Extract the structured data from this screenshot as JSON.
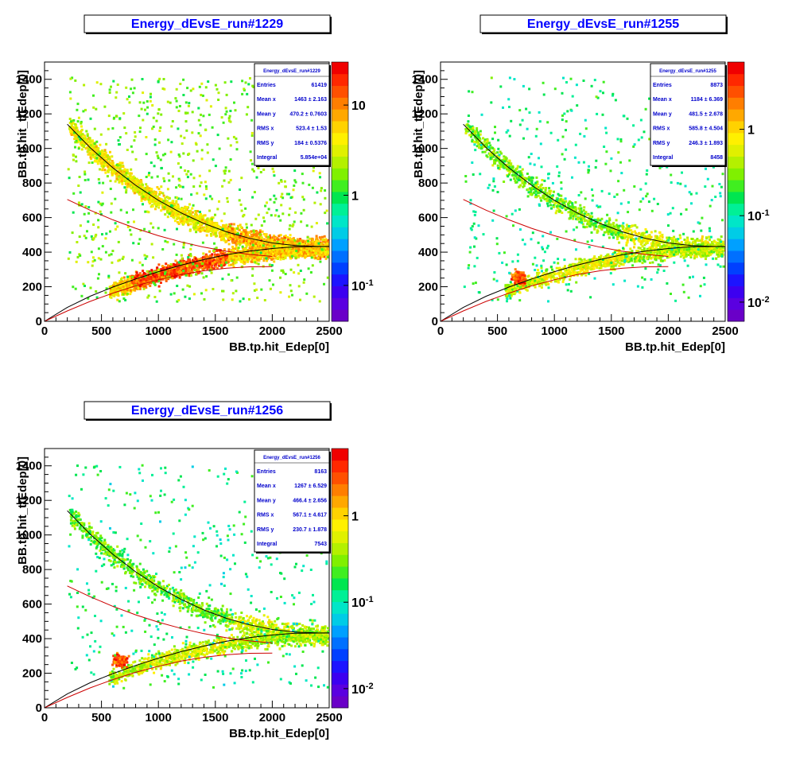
{
  "chart_data": [
    {
      "type": "heatmap",
      "title": "Energy_dEvsE_run#1229",
      "xlabel": "BB.tp.hit_Edep[0]",
      "ylabel": "BB.tp.hit_ttEdep[0]",
      "xlim": [
        0,
        2500
      ],
      "ylim": [
        0,
        1500
      ],
      "x_ticks": [
        "0",
        "500",
        "1000",
        "1500",
        "2000",
        "2500"
      ],
      "y_ticks": [
        "0",
        "200",
        "400",
        "600",
        "800",
        "1000",
        "1200",
        "1400"
      ],
      "z_scale": "log",
      "zlim": [
        0.04,
        30
      ],
      "z_ticks": [
        {
          "value": 0.1,
          "label": "10",
          "exp": "-1"
        },
        {
          "value": 1,
          "label": "1",
          "exp": ""
        },
        {
          "value": 10,
          "label": "10",
          "exp": ""
        }
      ],
      "stats": {
        "name": "Energy_dEvsE_run#1229",
        "rows": [
          {
            "label": "Entries",
            "value": "61419"
          },
          {
            "label": "Mean x",
            "value": "1463 ±  2.163"
          },
          {
            "label": "Mean y",
            "value": "470.2 ± 0.7603"
          },
          {
            "label": "RMS x",
            "value": "523.4 ±   1.53"
          },
          {
            "label": "RMS y",
            "value": "184 ± 0.5376"
          },
          {
            "label": "Integral",
            "value": "5.854e+04"
          }
        ]
      },
      "cuts": {
        "upper_black": [
          [
            200,
            1140
          ],
          [
            400,
            1005
          ],
          [
            600,
            888
          ],
          [
            800,
            787
          ],
          [
            1000,
            700
          ],
          [
            1200,
            627
          ],
          [
            1400,
            566
          ],
          [
            1600,
            517
          ],
          [
            1800,
            480
          ],
          [
            2000,
            453
          ],
          [
            2200,
            438
          ],
          [
            2400,
            433
          ],
          [
            2500,
            433
          ]
        ],
        "upper_red": [
          [
            200,
            705
          ],
          [
            400,
            643
          ],
          [
            600,
            587
          ],
          [
            800,
            538
          ],
          [
            1000,
            495
          ],
          [
            1200,
            459
          ],
          [
            1400,
            429
          ],
          [
            1600,
            405
          ],
          [
            1800,
            387
          ],
          [
            2000,
            375
          ]
        ],
        "lower_black": [
          [
            0,
            0
          ],
          [
            200,
            80
          ],
          [
            400,
            145
          ],
          [
            600,
            198
          ],
          [
            800,
            245
          ],
          [
            1000,
            287
          ],
          [
            1200,
            325
          ],
          [
            1400,
            357
          ],
          [
            1600,
            385
          ],
          [
            1800,
            406
          ],
          [
            2000,
            421
          ],
          [
            2200,
            431
          ],
          [
            2500,
            433
          ]
        ],
        "lower_red": [
          [
            0,
            0
          ],
          [
            200,
            60
          ],
          [
            400,
            115
          ],
          [
            600,
            163
          ],
          [
            800,
            205
          ],
          [
            1000,
            240
          ],
          [
            1200,
            270
          ],
          [
            1400,
            292
          ],
          [
            1600,
            307
          ],
          [
            1800,
            315
          ],
          [
            2000,
            316
          ]
        ]
      },
      "density_level": 1.0,
      "hotspot": {
        "x": 820,
        "y": 240
      }
    },
    {
      "type": "heatmap",
      "title": "Energy_dEvsE_run#1255",
      "xlabel": "BB.tp.hit_Edep[0]",
      "ylabel": "BB.tp.hit_ttEdep[0]",
      "xlim": [
        0,
        2500
      ],
      "ylim": [
        0,
        1500
      ],
      "x_ticks": [
        "0",
        "500",
        "1000",
        "1500",
        "2000",
        "2500"
      ],
      "y_ticks": [
        "0",
        "200",
        "400",
        "600",
        "800",
        "1000",
        "1200",
        "1400"
      ],
      "z_scale": "log",
      "zlim": [
        0.006,
        6
      ],
      "z_ticks": [
        {
          "value": 0.01,
          "label": "10",
          "exp": "-2"
        },
        {
          "value": 0.1,
          "label": "10",
          "exp": "-1"
        },
        {
          "value": 1,
          "label": "1",
          "exp": ""
        }
      ],
      "stats": {
        "name": "Energy_dEvsE_run#1255",
        "rows": [
          {
            "label": "Entries",
            "value": "8873"
          },
          {
            "label": "Mean x",
            "value": "1184 ±  6.369"
          },
          {
            "label": "Mean y",
            "value": "481.5 ±  2.678"
          },
          {
            "label": "RMS x",
            "value": "585.8 ±  4.504"
          },
          {
            "label": "RMS y",
            "value": "246.3 ±  1.893"
          },
          {
            "label": "Integral",
            "value": "8458"
          }
        ]
      },
      "cuts": {
        "upper_black": [
          [
            200,
            1140
          ],
          [
            400,
            1005
          ],
          [
            600,
            888
          ],
          [
            800,
            787
          ],
          [
            1000,
            700
          ],
          [
            1200,
            627
          ],
          [
            1400,
            566
          ],
          [
            1600,
            517
          ],
          [
            1800,
            480
          ],
          [
            2000,
            453
          ],
          [
            2200,
            438
          ],
          [
            2400,
            433
          ],
          [
            2500,
            433
          ]
        ],
        "upper_red": [
          [
            200,
            705
          ],
          [
            400,
            643
          ],
          [
            600,
            587
          ],
          [
            800,
            538
          ],
          [
            1000,
            495
          ],
          [
            1200,
            459
          ],
          [
            1400,
            429
          ],
          [
            1600,
            405
          ],
          [
            1800,
            387
          ],
          [
            2000,
            375
          ]
        ],
        "lower_black": [
          [
            0,
            0
          ],
          [
            200,
            80
          ],
          [
            400,
            145
          ],
          [
            600,
            198
          ],
          [
            800,
            245
          ],
          [
            1000,
            287
          ],
          [
            1200,
            325
          ],
          [
            1400,
            357
          ],
          [
            1600,
            385
          ],
          [
            1800,
            406
          ],
          [
            2000,
            421
          ],
          [
            2200,
            431
          ],
          [
            2500,
            433
          ]
        ],
        "lower_red": [
          [
            0,
            0
          ],
          [
            200,
            60
          ],
          [
            400,
            115
          ],
          [
            600,
            163
          ],
          [
            800,
            205
          ],
          [
            1000,
            240
          ],
          [
            1200,
            270
          ],
          [
            1400,
            292
          ],
          [
            1600,
            307
          ],
          [
            1800,
            315
          ],
          [
            2000,
            316
          ]
        ]
      },
      "density_level": 0.4,
      "hotspot": {
        "x": 680,
        "y": 260
      }
    },
    {
      "type": "heatmap",
      "title": "Energy_dEvsE_run#1256",
      "xlabel": "BB.tp.hit_Edep[0]",
      "ylabel": "BB.tp.hit_ttEdep[0]",
      "xlim": [
        0,
        2500
      ],
      "ylim": [
        0,
        1500
      ],
      "x_ticks": [
        "0",
        "500",
        "1000",
        "1500",
        "2000",
        "2500"
      ],
      "y_ticks": [
        "0",
        "200",
        "400",
        "600",
        "800",
        "1000",
        "1200",
        "1400"
      ],
      "z_scale": "log",
      "zlim": [
        0.006,
        6
      ],
      "z_ticks": [
        {
          "value": 0.01,
          "label": "10",
          "exp": "-2"
        },
        {
          "value": 0.1,
          "label": "10",
          "exp": "-1"
        },
        {
          "value": 1,
          "label": "1",
          "exp": ""
        }
      ],
      "stats": {
        "name": "Energy_dEvsE_run#1256",
        "rows": [
          {
            "label": "Entries",
            "value": "8163"
          },
          {
            "label": "Mean x",
            "value": "1267 ±  6.529"
          },
          {
            "label": "Mean y",
            "value": "466.4 ±  2.656"
          },
          {
            "label": "RMS x",
            "value": "567.1 ±  4.617"
          },
          {
            "label": "RMS y",
            "value": "230.7 ±  1.878"
          },
          {
            "label": "Integral",
            "value": "7543"
          }
        ]
      },
      "cuts": {
        "upper_black": [
          [
            200,
            1140
          ],
          [
            400,
            1005
          ],
          [
            600,
            888
          ],
          [
            800,
            787
          ],
          [
            1000,
            700
          ],
          [
            1200,
            627
          ],
          [
            1400,
            566
          ],
          [
            1600,
            517
          ],
          [
            1800,
            480
          ],
          [
            2000,
            453
          ],
          [
            2200,
            438
          ],
          [
            2400,
            433
          ],
          [
            2500,
            433
          ]
        ],
        "upper_red": [
          [
            200,
            705
          ],
          [
            400,
            643
          ],
          [
            600,
            587
          ],
          [
            800,
            538
          ],
          [
            1000,
            495
          ],
          [
            1200,
            459
          ],
          [
            1400,
            429
          ],
          [
            1600,
            405
          ],
          [
            1800,
            387
          ],
          [
            2000,
            375
          ]
        ],
        "lower_black": [
          [
            0,
            0
          ],
          [
            200,
            80
          ],
          [
            400,
            145
          ],
          [
            600,
            198
          ],
          [
            800,
            245
          ],
          [
            1000,
            287
          ],
          [
            1200,
            325
          ],
          [
            1400,
            357
          ],
          [
            1600,
            385
          ],
          [
            1800,
            406
          ],
          [
            2000,
            421
          ],
          [
            2200,
            431
          ],
          [
            2500,
            433
          ]
        ],
        "lower_red": [
          [
            0,
            0
          ],
          [
            200,
            60
          ],
          [
            400,
            115
          ],
          [
            600,
            163
          ],
          [
            800,
            205
          ],
          [
            1000,
            240
          ],
          [
            1200,
            270
          ],
          [
            1400,
            292
          ],
          [
            1600,
            307
          ],
          [
            1800,
            315
          ],
          [
            2000,
            316
          ]
        ]
      },
      "density_level": 0.35,
      "hotspot": {
        "x": 660,
        "y": 280
      }
    }
  ],
  "colors": {
    "title_text": "#0000ff",
    "stats_text": "#0000cc",
    "cut_upper": "#000000",
    "cut_lower": "#cc0000",
    "palette": [
      "#6a00c8",
      "#5a00e0",
      "#3c00f0",
      "#1c14ff",
      "#0040ff",
      "#0070ff",
      "#00a0ff",
      "#00cce6",
      "#00e6c8",
      "#00f096",
      "#00e650",
      "#40ee20",
      "#80f000",
      "#b4f000",
      "#e0f000",
      "#fff000",
      "#ffd200",
      "#ffa800",
      "#ff7e00",
      "#ff5000",
      "#ff2800",
      "#f00000"
    ]
  }
}
